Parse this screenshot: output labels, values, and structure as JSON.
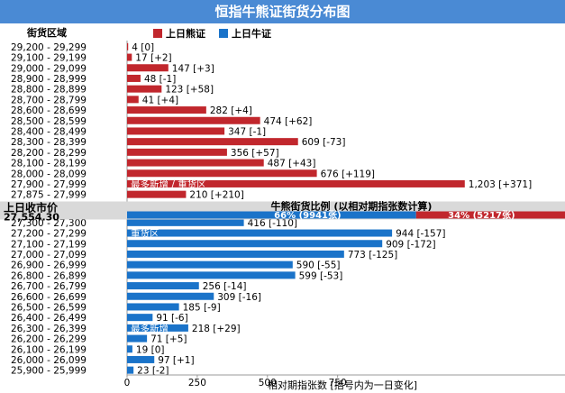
{
  "chart_data": {
    "type": "bar",
    "orientation": "horizontal",
    "title": "恒指牛熊证街货分布图",
    "category_header": "街货区域",
    "legend": [
      {
        "name": "上日熊证",
        "color": "#c1272d"
      },
      {
        "name": "上日牛证",
        "color": "#1a73c9"
      }
    ],
    "colors": {
      "bear": "#c1272d",
      "bull": "#1a73c9",
      "title_bg": "#4a8ad4",
      "band": "#d9d9d9"
    },
    "xlabel": "相对期指张数 [括号内为一日变化]",
    "xticks": [
      0,
      250,
      500,
      750
    ],
    "xlim": [
      0,
      1560
    ],
    "bear_series": {
      "name": "上日熊证",
      "categories": [
        "29,200 - 29,299",
        "29,100 - 29,199",
        "29,000 - 29,099",
        "28,900 - 28,999",
        "28,800 - 28,899",
        "28,700 - 28,799",
        "28,600 - 28,699",
        "28,500 - 28,599",
        "28,400 - 28,499",
        "28,300 - 28,399",
        "28,200 - 28,299",
        "28,100 - 28,199",
        "28,000 - 28,099",
        "27,900 - 27,999",
        "27,875 - 27,999"
      ],
      "values": [
        4,
        17,
        147,
        48,
        123,
        41,
        282,
        474,
        347,
        609,
        356,
        487,
        676,
        1203,
        210
      ],
      "labels": [
        "4 [0]",
        "17 [+2]",
        "147 [+3]",
        "48 [-1]",
        "123 [+58]",
        "41 [+4]",
        "282 [+4]",
        "474 [+62]",
        "347 [-1]",
        "609 [-73]",
        "356 [+57]",
        "487 [+43]",
        "676 [+119]",
        "1,203 [+371]",
        "210 [+210]"
      ]
    },
    "bull_series": {
      "name": "上日牛证",
      "categories": [
        "27,300 - 27,300",
        "27,200 - 27,299",
        "27,100 - 27,199",
        "27,000 - 27,099",
        "26,900 - 26,999",
        "26,800 - 26,899",
        "26,700 - 26,799",
        "26,600 - 26,699",
        "26,500 - 26,599",
        "26,400 - 26,499",
        "26,300 - 26,399",
        "26,200 - 26,299",
        "26,100 - 26,199",
        "26,000 - 26,099",
        "25,900 - 25,999"
      ],
      "values": [
        416,
        944,
        909,
        773,
        590,
        599,
        256,
        309,
        185,
        91,
        218,
        71,
        19,
        97,
        23
      ],
      "labels": [
        "416 [-110]",
        "944 [-157]",
        "909 [-172]",
        "773 [-125]",
        "590 [-55]",
        "599 [-53]",
        "256 [-14]",
        "309 [-16]",
        "185 [-9]",
        "91 [-6]",
        "218 [+29]",
        "71 [+5]",
        "19 [0]",
        "97 [+1]",
        "23 [-2]"
      ]
    },
    "annotations": [
      {
        "series": "bear",
        "row": 13,
        "text": "最多新增 / 重货区"
      },
      {
        "series": "bull",
        "row": 1,
        "text": "重货区"
      },
      {
        "series": "bull",
        "row": 10,
        "text": "最多新增"
      }
    ],
    "close": {
      "label": "上日收市价",
      "value": "27,554.30"
    },
    "ratio": {
      "title": "牛熊街货比例 (以相对期指张数计算)",
      "bull_percent": 66,
      "bull_text": "66% (9941张)",
      "bear_percent": 34,
      "bear_text": "34% (5217张)"
    }
  }
}
